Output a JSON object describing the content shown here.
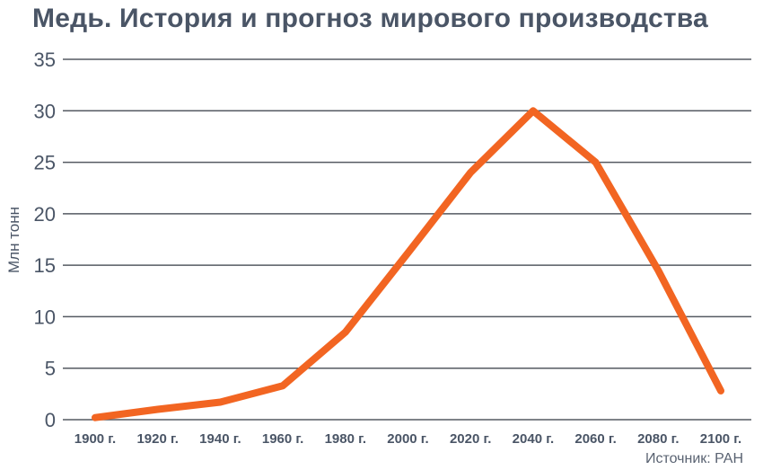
{
  "chart_data": {
    "type": "line",
    "title": "Медь. История и прогноз мирового производства",
    "ylabel": "Млн тонн",
    "xlabel": "",
    "ylim": [
      0,
      35
    ],
    "yticks": [
      "0",
      "5",
      "10",
      "15",
      "20",
      "25",
      "30",
      "35"
    ],
    "grid": true,
    "categories": [
      "1900 г.",
      "1920 г.",
      "1940 г.",
      "1960 г.",
      "1980 г.",
      "2000 г.",
      "2020 г.",
      "2040 г.",
      "2060 г.",
      "2080 г.",
      "2100 г."
    ],
    "series": [
      {
        "values": [
          0.2,
          1.0,
          1.7,
          3.3,
          8.5,
          16.2,
          24.0,
          30.0,
          25.0,
          14.5,
          2.8
        ],
        "color": "#f26522"
      }
    ],
    "source": "Источник: РАН"
  }
}
